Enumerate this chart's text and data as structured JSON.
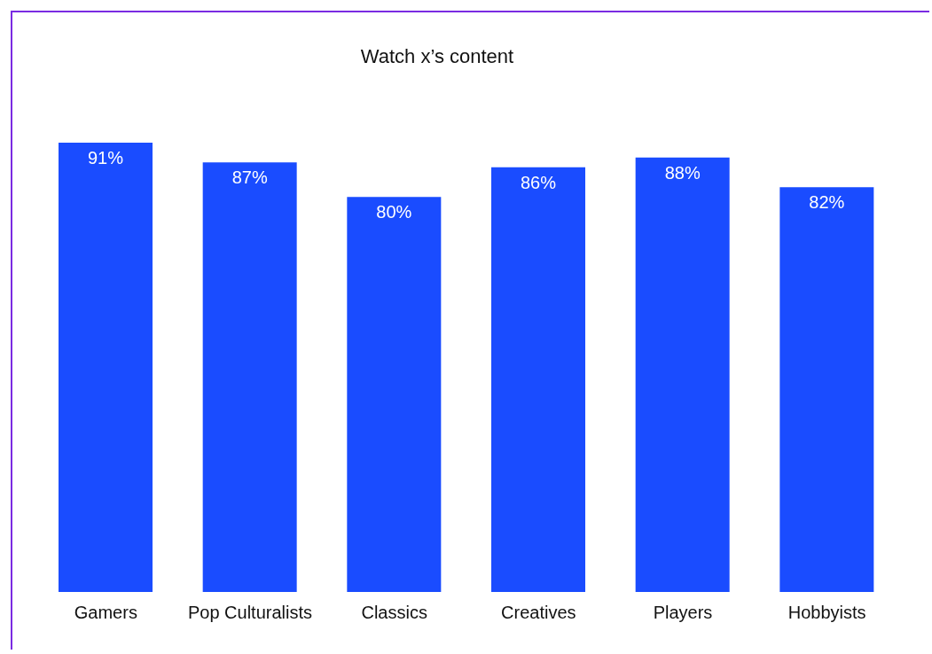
{
  "chart_data": {
    "type": "bar",
    "title": "Watch x’s content",
    "categories": [
      "Gamers",
      "Pop Culturalists",
      "Classics",
      "Creatives",
      "Players",
      "Hobbyists"
    ],
    "values": [
      91,
      87,
      80,
      86,
      88,
      82
    ],
    "value_labels": [
      "91%",
      "87%",
      "80%",
      "86%",
      "88%",
      "82%"
    ],
    "color": "#1a4cff",
    "grid": false,
    "legend": false
  }
}
